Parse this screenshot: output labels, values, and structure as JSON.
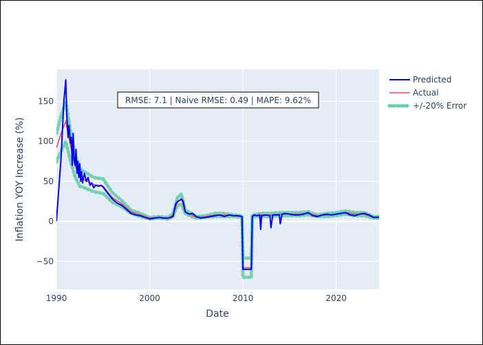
{
  "chart_data": {
    "type": "line",
    "xlabel": "Date",
    "ylabel": "Inflation YOY Increase (%)",
    "xlim": [
      1990,
      2024.6
    ],
    "ylim": [
      -85,
      190
    ],
    "x_ticks": [
      1990,
      2000,
      2010,
      2020
    ],
    "x_tick_labels": [
      "1990",
      "2000",
      "2010",
      "2020"
    ],
    "y_ticks": [
      -50,
      0,
      50,
      100,
      150
    ],
    "y_tick_labels": [
      "−50",
      "0",
      "50",
      "100",
      "150"
    ],
    "grid": true,
    "legend_position": "right",
    "annotation": "RMSE: 7.1 | Naive RMSE: 0.49 | MAPE: 9.62%",
    "colors": {
      "plot_bg": "#e5ecf6",
      "grid": "#ffffff",
      "predicted": "#0000ff",
      "actual": "#d9534f",
      "error_band": "#66cdaa"
    },
    "series": [
      {
        "name": "Predicted",
        "x": [
          1990.0,
          1990.5,
          1990.8,
          1991.0,
          1991.1,
          1991.25,
          1991.35,
          1991.5,
          1991.6,
          1991.7,
          1991.8,
          1991.9,
          1992.0,
          1992.1,
          1992.2,
          1992.3,
          1992.4,
          1992.5,
          1992.6,
          1992.7,
          1992.8,
          1992.9,
          1993.0,
          1993.2,
          1993.4,
          1993.6,
          1993.8,
          1994.0,
          1994.2,
          1994.5,
          1994.8,
          1995.0,
          1995.5,
          1996.0,
          1996.5,
          1997.0,
          1997.5,
          1998.0,
          1998.5,
          1999.0,
          1999.5,
          2000.0,
          2000.5,
          2001.0,
          2001.5,
          2002.0,
          2002.5,
          2002.8,
          2003.0,
          2003.2,
          2003.4,
          2003.6,
          2003.8,
          2004.2,
          2004.6,
          2005.0,
          2005.5,
          2006.0,
          2006.5,
          2007.0,
          2007.5,
          2008.0,
          2008.5,
          2009.0,
          2009.5,
          2009.9,
          2010.0,
          2010.2,
          2010.5,
          2010.9,
          2011.0,
          2011.2,
          2011.5,
          2011.8,
          2011.9,
          2012.0,
          2012.5,
          2012.9,
          2013.0,
          2013.2,
          2013.5,
          2013.9,
          2014.0,
          2014.2,
          2014.5,
          2015.0,
          2015.5,
          2016.0,
          2016.5,
          2017.0,
          2017.5,
          2018.0,
          2018.5,
          2019.0,
          2019.5,
          2020.0,
          2020.5,
          2021.0,
          2021.5,
          2022.0,
          2022.5,
          2023.0,
          2023.5,
          2024.0,
          2024.6
        ],
        "values": [
          0,
          80,
          150,
          177,
          135,
          105,
          120,
          98,
          105,
          70,
          110,
          75,
          70,
          90,
          60,
          75,
          55,
          72,
          50,
          62,
          48,
          55,
          60,
          50,
          55,
          45,
          48,
          42,
          45,
          44,
          45,
          43,
          35,
          28,
          23,
          20,
          15,
          10,
          8,
          7,
          5,
          3,
          4,
          5,
          4,
          4,
          6,
          22,
          25,
          26,
          28,
          25,
          12,
          9,
          10,
          6,
          4,
          5,
          6,
          7,
          8,
          6,
          8,
          7,
          7,
          6,
          -60,
          -60,
          -60,
          -60,
          6,
          8,
          7,
          8,
          -10,
          7,
          8,
          7,
          -8,
          8,
          8,
          8,
          -3,
          9,
          10,
          9,
          8,
          8,
          9,
          11,
          7,
          6,
          8,
          9,
          8,
          9,
          10,
          11,
          8,
          7,
          9,
          10,
          8,
          5,
          5
        ]
      },
      {
        "name": "Actual",
        "x": [
          1990.0,
          1990.5,
          1991.0,
          1991.5,
          1992.0,
          1992.5,
          1993.0,
          1994.0,
          1995.0,
          1996.0,
          1997.0,
          1998.0,
          1999.0,
          2000.0,
          2001.0,
          2002.0,
          2002.5,
          2003.0,
          2003.4,
          2003.8,
          2004.5,
          2005.0,
          2006.0,
          2007.0,
          2008.0,
          2009.0,
          2009.9,
          2010.0,
          2010.5,
          2010.9,
          2011.0,
          2012.0,
          2013.0,
          2014.0,
          2015.0,
          2016.0,
          2017.0,
          2018.0,
          2019.0,
          2020.0,
          2021.0,
          2022.0,
          2023.0,
          2024.0,
          2024.6
        ],
        "values": [
          92,
          110,
          125,
          95,
          70,
          55,
          52,
          46,
          44,
          30,
          22,
          12,
          8,
          4,
          5,
          4,
          8,
          25,
          28,
          12,
          8,
          5,
          6,
          8,
          8,
          7,
          6,
          -58,
          -58,
          -58,
          7,
          8,
          8,
          9,
          9,
          9,
          10,
          7,
          8,
          9,
          11,
          9,
          9,
          5,
          5
        ]
      },
      {
        "name": "+/-20% Error",
        "x": [
          1990.0,
          1990.5,
          1991.0,
          1991.5,
          1992.0,
          1992.5,
          1993.0,
          1994.0,
          1995.0,
          1996.0,
          1997.0,
          1998.0,
          1999.0,
          2000.0,
          2001.0,
          2002.0,
          2002.5,
          2003.0,
          2003.4,
          2003.8,
          2004.5,
          2005.0,
          2006.0,
          2007.0,
          2008.0,
          2009.0,
          2009.9,
          2010.0,
          2010.5,
          2010.9,
          2011.0,
          2012.0,
          2013.0,
          2014.0,
          2015.0,
          2016.0,
          2017.0,
          2018.0,
          2019.0,
          2020.0,
          2021.0,
          2022.0,
          2023.0,
          2024.0,
          2024.6
        ],
        "upper": [
          110,
          132,
          150,
          114,
          84,
          66,
          62,
          55,
          53,
          36,
          26,
          14,
          10,
          5,
          6,
          5,
          10,
          30,
          34,
          14,
          10,
          6,
          7,
          10,
          10,
          8,
          7,
          -46,
          -46,
          -46,
          8,
          10,
          10,
          11,
          11,
          11,
          12,
          8,
          10,
          11,
          13,
          11,
          11,
          6,
          6
        ],
        "lower": [
          74,
          88,
          100,
          76,
          56,
          44,
          42,
          37,
          35,
          24,
          18,
          10,
          6,
          3,
          4,
          3,
          6,
          20,
          22,
          10,
          6,
          4,
          5,
          6,
          6,
          6,
          5,
          -70,
          -70,
          -70,
          6,
          6,
          6,
          7,
          7,
          7,
          8,
          6,
          6,
          7,
          9,
          7,
          7,
          4,
          4
        ]
      }
    ]
  }
}
